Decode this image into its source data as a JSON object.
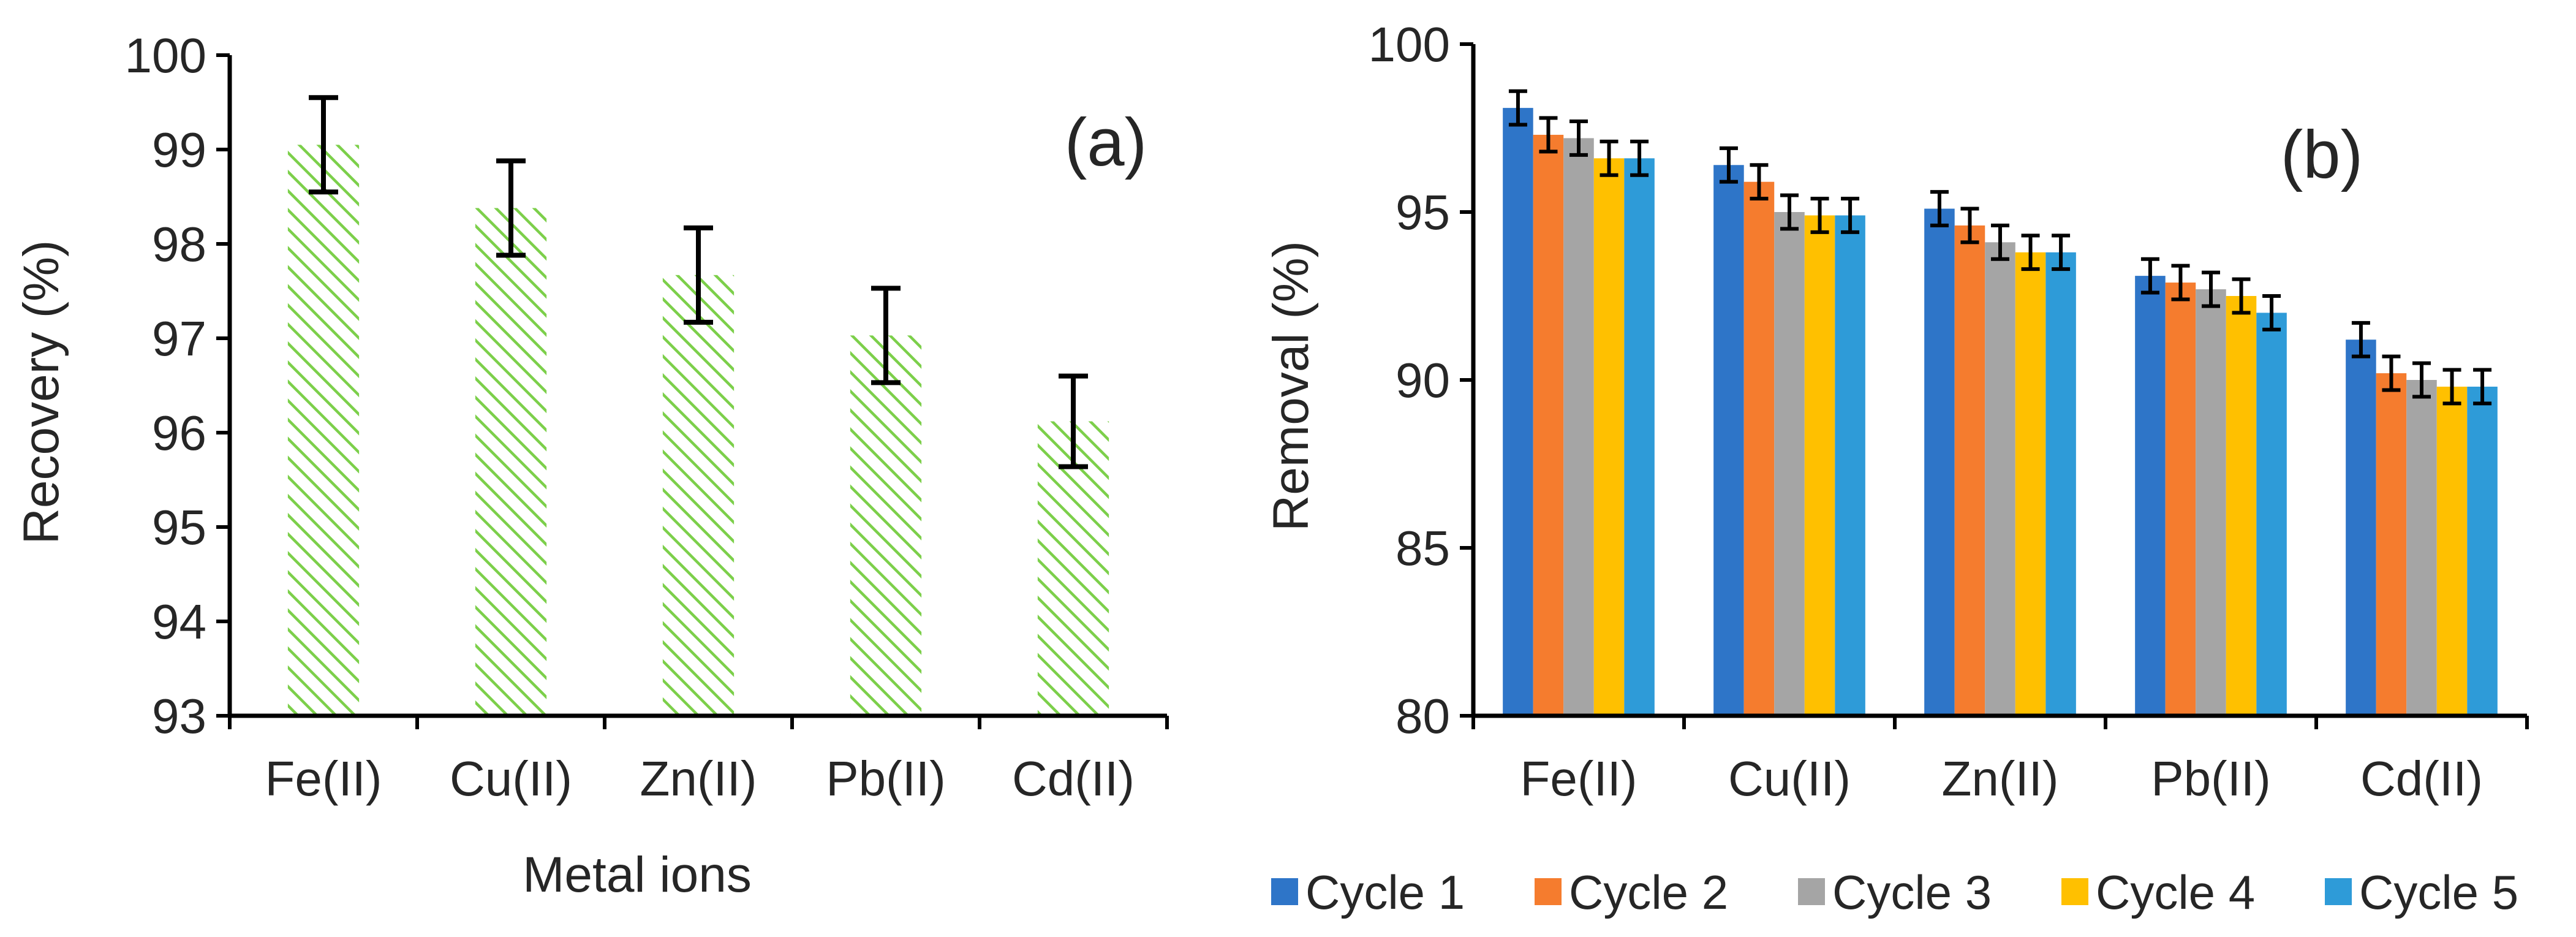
{
  "chart_data": [
    {
      "type": "bar",
      "panel_label": "(a)",
      "title": "",
      "xlabel": "Metal ions",
      "ylabel": "Recovery (%)",
      "ylim": [
        93,
        100
      ],
      "yticks": [
        "93",
        "94",
        "95",
        "96",
        "97",
        "98",
        "99",
        "100"
      ],
      "categories": [
        "Fe(II)",
        "Cu(II)",
        "Zn(II)",
        "Pb(II)",
        "Cd(II)"
      ],
      "values": [
        99.05,
        98.38,
        97.67,
        97.03,
        96.12
      ],
      "errors": [
        0.5,
        0.5,
        0.5,
        0.5,
        0.48
      ],
      "bar_color": "#7ccf4a",
      "bar_fill": "diagonal-hatch",
      "grid": false
    },
    {
      "type": "bar",
      "panel_label": "(b)",
      "title": "",
      "xlabel": "",
      "ylabel": "Removal (%)",
      "ylim": [
        80,
        100
      ],
      "yticks": [
        "80",
        "85",
        "90",
        "95",
        "100"
      ],
      "categories": [
        "Fe(II)",
        "Cu(II)",
        "Zn(II)",
        "Pb(II)",
        "Cd(II)"
      ],
      "series": [
        {
          "name": "Cycle 1",
          "color": "#2e75c8",
          "values": [
            98.1,
            96.4,
            95.1,
            93.1,
            91.2
          ],
          "errors": [
            0.5,
            0.5,
            0.5,
            0.5,
            0.5
          ]
        },
        {
          "name": "Cycle 2",
          "color": "#f57c2e",
          "values": [
            97.3,
            95.9,
            94.6,
            92.9,
            90.2
          ],
          "errors": [
            0.5,
            0.5,
            0.5,
            0.5,
            0.5
          ]
        },
        {
          "name": "Cycle 3",
          "color": "#a5a5a5",
          "values": [
            97.2,
            95.0,
            94.1,
            92.7,
            90.0
          ],
          "errors": [
            0.5,
            0.5,
            0.5,
            0.5,
            0.5
          ]
        },
        {
          "name": "Cycle 4",
          "color": "#ffc000",
          "values": [
            96.6,
            94.9,
            93.8,
            92.5,
            89.8
          ],
          "errors": [
            0.5,
            0.5,
            0.5,
            0.5,
            0.5
          ]
        },
        {
          "name": "Cycle 5",
          "color": "#2e9bd8",
          "values": [
            96.6,
            94.9,
            93.8,
            92.0,
            89.8
          ],
          "errors": [
            0.5,
            0.5,
            0.5,
            0.5,
            0.5
          ]
        }
      ],
      "legend_position": "bottom",
      "grid": false
    }
  ]
}
